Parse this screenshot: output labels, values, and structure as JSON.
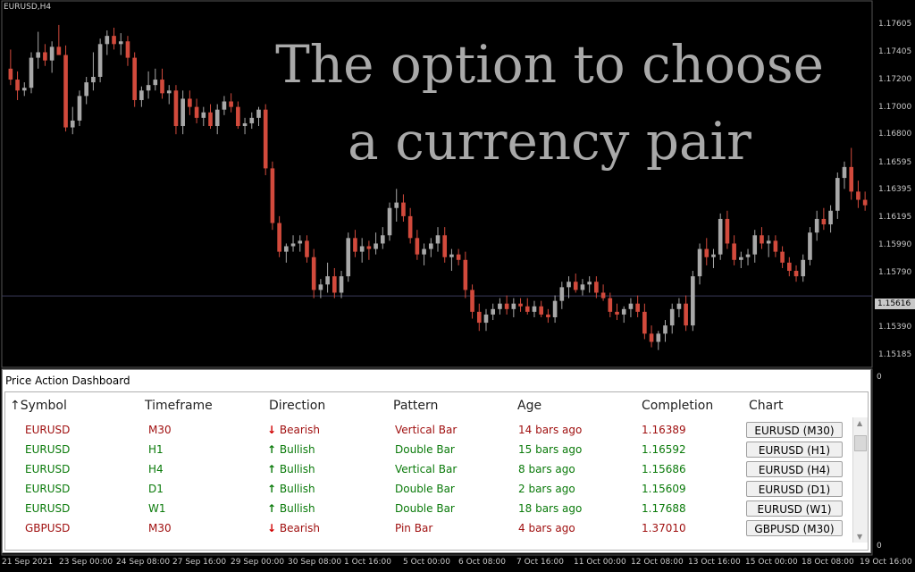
{
  "chart": {
    "symbol_label": "EURUSD,H4",
    "overlay_line1": "The option to choose",
    "overlay_line2": "a currency pair",
    "current_price": "1.15616",
    "price_labels": [
      "1.17605",
      "1.17405",
      "1.17200",
      "1.17000",
      "1.16800",
      "1.16595",
      "1.16395",
      "1.16195",
      "1.15990",
      "1.15790",
      "1.15390",
      "1.15185"
    ],
    "sub_window_labels": [
      "0",
      "0"
    ],
    "time_labels": [
      "21 Sep 2021",
      "23 Sep 00:00",
      "24 Sep 08:00",
      "27 Sep 16:00",
      "29 Sep 00:00",
      "30 Sep 08:00",
      "1 Oct 16:00",
      "5 Oct 00:00",
      "6 Oct 08:00",
      "7 Oct 16:00",
      "11 Oct 00:00",
      "12 Oct 08:00",
      "13 Oct 16:00",
      "15 Oct 00:00",
      "18 Oct 08:00",
      "19 Oct 16:00"
    ],
    "colors": {
      "bull": "#a8a8a8",
      "bear": "#d24a3c",
      "grid": "#2a2a2a",
      "background": "#000000"
    }
  },
  "chart_data": {
    "type": "candlestick",
    "ylim": [
      1.151,
      1.1775
    ],
    "candles": [
      [
        1.1728,
        1.1742,
        1.1716,
        1.172
      ],
      [
        1.172,
        1.1726,
        1.1705,
        1.1712
      ],
      [
        1.1712,
        1.1718,
        1.1708,
        1.1714
      ],
      [
        1.1714,
        1.174,
        1.171,
        1.1736
      ],
      [
        1.1736,
        1.1755,
        1.1728,
        1.174
      ],
      [
        1.174,
        1.1746,
        1.173,
        1.1734
      ],
      [
        1.1734,
        1.1748,
        1.1725,
        1.1744
      ],
      [
        1.1744,
        1.176,
        1.174,
        1.1738
      ],
      [
        1.1738,
        1.1745,
        1.1682,
        1.1685
      ],
      [
        1.1685,
        1.17,
        1.168,
        1.169
      ],
      [
        1.169,
        1.1712,
        1.1686,
        1.1708
      ],
      [
        1.1708,
        1.1722,
        1.1702,
        1.1718
      ],
      [
        1.1718,
        1.174,
        1.1712,
        1.1722
      ],
      [
        1.1722,
        1.175,
        1.1718,
        1.1746
      ],
      [
        1.1746,
        1.1756,
        1.1738,
        1.1752
      ],
      [
        1.1752,
        1.1758,
        1.1742,
        1.1746
      ],
      [
        1.1746,
        1.1754,
        1.1738,
        1.1748
      ],
      [
        1.1748,
        1.1752,
        1.173,
        1.1736
      ],
      [
        1.1736,
        1.174,
        1.17,
        1.1705
      ],
      [
        1.1705,
        1.1715,
        1.17,
        1.1712
      ],
      [
        1.1712,
        1.1726,
        1.1706,
        1.1716
      ],
      [
        1.1716,
        1.1728,
        1.1712,
        1.172
      ],
      [
        1.172,
        1.1728,
        1.1706,
        1.171
      ],
      [
        1.171,
        1.1716,
        1.1702,
        1.1712
      ],
      [
        1.1712,
        1.1716,
        1.168,
        1.1686
      ],
      [
        1.1686,
        1.1712,
        1.168,
        1.1706
      ],
      [
        1.1706,
        1.1712,
        1.1694,
        1.17
      ],
      [
        1.17,
        1.1706,
        1.1688,
        1.1692
      ],
      [
        1.1692,
        1.17,
        1.1686,
        1.1696
      ],
      [
        1.1696,
        1.1702,
        1.1684,
        1.1686
      ],
      [
        1.1686,
        1.1702,
        1.168,
        1.1698
      ],
      [
        1.1698,
        1.1708,
        1.1694,
        1.1704
      ],
      [
        1.1704,
        1.171,
        1.1696,
        1.17
      ],
      [
        1.17,
        1.1704,
        1.1684,
        1.1686
      ],
      [
        1.1686,
        1.1692,
        1.168,
        1.1688
      ],
      [
        1.1688,
        1.1696,
        1.1684,
        1.1692
      ],
      [
        1.1692,
        1.17,
        1.1686,
        1.1698
      ],
      [
        1.1698,
        1.1702,
        1.165,
        1.1655
      ],
      [
        1.1655,
        1.166,
        1.161,
        1.1615
      ],
      [
        1.1615,
        1.162,
        1.159,
        1.1594
      ],
      [
        1.1594,
        1.16,
        1.1586,
        1.1598
      ],
      [
        1.1598,
        1.1606,
        1.1594,
        1.16
      ],
      [
        1.16,
        1.1606,
        1.1594,
        1.1602
      ],
      [
        1.1602,
        1.1606,
        1.1586,
        1.159
      ],
      [
        1.159,
        1.1596,
        1.156,
        1.1566
      ],
      [
        1.1566,
        1.1574,
        1.156,
        1.157
      ],
      [
        1.157,
        1.1586,
        1.1564,
        1.1576
      ],
      [
        1.1576,
        1.1582,
        1.156,
        1.1564
      ],
      [
        1.1564,
        1.158,
        1.156,
        1.1576
      ],
      [
        1.1576,
        1.1608,
        1.1572,
        1.1604
      ],
      [
        1.1604,
        1.161,
        1.159,
        1.1594
      ],
      [
        1.1594,
        1.1604,
        1.1586,
        1.1598
      ],
      [
        1.1598,
        1.1602,
        1.1588,
        1.1596
      ],
      [
        1.1596,
        1.1608,
        1.1592,
        1.16
      ],
      [
        1.16,
        1.1612,
        1.1596,
        1.1606
      ],
      [
        1.1606,
        1.163,
        1.1602,
        1.1626
      ],
      [
        1.1626,
        1.164,
        1.1616,
        1.163
      ],
      [
        1.163,
        1.1636,
        1.1616,
        1.162
      ],
      [
        1.162,
        1.1626,
        1.16,
        1.1604
      ],
      [
        1.1604,
        1.161,
        1.1588,
        1.1592
      ],
      [
        1.1592,
        1.16,
        1.1584,
        1.1596
      ],
      [
        1.1596,
        1.1604,
        1.159,
        1.16
      ],
      [
        1.16,
        1.1612,
        1.1594,
        1.1606
      ],
      [
        1.1606,
        1.1612,
        1.1586,
        1.159
      ],
      [
        1.159,
        1.1596,
        1.158,
        1.1592
      ],
      [
        1.1592,
        1.1596,
        1.1584,
        1.1588
      ],
      [
        1.1588,
        1.1594,
        1.156,
        1.1566
      ],
      [
        1.1566,
        1.157,
        1.1545,
        1.155
      ],
      [
        1.155,
        1.1556,
        1.1536,
        1.1542
      ],
      [
        1.1542,
        1.1552,
        1.1536,
        1.1548
      ],
      [
        1.1548,
        1.1556,
        1.1544,
        1.1552
      ],
      [
        1.1552,
        1.156,
        1.1548,
        1.1556
      ],
      [
        1.1556,
        1.1562,
        1.1548,
        1.1552
      ],
      [
        1.1552,
        1.156,
        1.1546,
        1.1556
      ],
      [
        1.1556,
        1.156,
        1.155,
        1.1554
      ],
      [
        1.1554,
        1.156,
        1.1548,
        1.155
      ],
      [
        1.155,
        1.1558,
        1.1546,
        1.1554
      ],
      [
        1.1554,
        1.1558,
        1.1546,
        1.1548
      ],
      [
        1.1548,
        1.1552,
        1.1542,
        1.1546
      ],
      [
        1.1546,
        1.1562,
        1.1542,
        1.1558
      ],
      [
        1.1558,
        1.1572,
        1.1552,
        1.1568
      ],
      [
        1.1568,
        1.1576,
        1.156,
        1.1572
      ],
      [
        1.1572,
        1.1578,
        1.1564,
        1.1566
      ],
      [
        1.1566,
        1.1574,
        1.1562,
        1.157
      ],
      [
        1.157,
        1.1576,
        1.1564,
        1.1572
      ],
      [
        1.1572,
        1.1576,
        1.156,
        1.1564
      ],
      [
        1.1564,
        1.157,
        1.1558,
        1.156
      ],
      [
        1.156,
        1.1564,
        1.1546,
        1.155
      ],
      [
        1.155,
        1.1556,
        1.1544,
        1.1548
      ],
      [
        1.1548,
        1.1554,
        1.1542,
        1.1552
      ],
      [
        1.1552,
        1.156,
        1.1546,
        1.1556
      ],
      [
        1.1556,
        1.1562,
        1.1546,
        1.155
      ],
      [
        1.155,
        1.1556,
        1.153,
        1.1534
      ],
      [
        1.1534,
        1.154,
        1.1524,
        1.1528
      ],
      [
        1.1528,
        1.1536,
        1.1522,
        1.1534
      ],
      [
        1.1534,
        1.1544,
        1.1528,
        1.154
      ],
      [
        1.154,
        1.1556,
        1.1534,
        1.1552
      ],
      [
        1.1552,
        1.156,
        1.1546,
        1.1556
      ],
      [
        1.1556,
        1.1562,
        1.1536,
        1.154
      ],
      [
        1.154,
        1.158,
        1.1536,
        1.1576
      ],
      [
        1.1576,
        1.16,
        1.157,
        1.1596
      ],
      [
        1.1596,
        1.1604,
        1.1584,
        1.159
      ],
      [
        1.159,
        1.1596,
        1.1582,
        1.1592
      ],
      [
        1.1592,
        1.1622,
        1.1588,
        1.1618
      ],
      [
        1.1618,
        1.1624,
        1.1596,
        1.16
      ],
      [
        1.16,
        1.1606,
        1.1584,
        1.1588
      ],
      [
        1.1588,
        1.1594,
        1.1582,
        1.159
      ],
      [
        1.159,
        1.1596,
        1.1584,
        1.1592
      ],
      [
        1.1592,
        1.161,
        1.1586,
        1.1606
      ],
      [
        1.1606,
        1.1612,
        1.1596,
        1.16
      ],
      [
        1.16,
        1.1606,
        1.159,
        1.1602
      ],
      [
        1.1602,
        1.1606,
        1.159,
        1.1594
      ],
      [
        1.1594,
        1.1598,
        1.1582,
        1.1586
      ],
      [
        1.1586,
        1.159,
        1.1576,
        1.158
      ],
      [
        1.158,
        1.1584,
        1.1572,
        1.1576
      ],
      [
        1.1576,
        1.1592,
        1.1572,
        1.1588
      ],
      [
        1.1588,
        1.1612,
        1.1584,
        1.1608
      ],
      [
        1.1608,
        1.1624,
        1.1602,
        1.1618
      ],
      [
        1.1618,
        1.1626,
        1.161,
        1.1614
      ],
      [
        1.1614,
        1.1628,
        1.1608,
        1.1624
      ],
      [
        1.1624,
        1.1652,
        1.1618,
        1.1648
      ],
      [
        1.1648,
        1.166,
        1.164,
        1.1656
      ],
      [
        1.1656,
        1.167,
        1.1632,
        1.1638
      ],
      [
        1.1638,
        1.1646,
        1.1626,
        1.1632
      ],
      [
        1.1632,
        1.1638,
        1.1624,
        1.1628
      ]
    ]
  },
  "dashboard": {
    "title": "Price Action Dashboard",
    "headers": [
      "Symbol",
      "Timeframe",
      "Direction",
      "Pattern",
      "Age",
      "Completion",
      "Chart"
    ],
    "sort_indicator": "↑",
    "rows": [
      {
        "symbol": "EURUSD",
        "timeframe": "M30",
        "direction": "Bearish",
        "dir_arrow": "🡫",
        "pattern": "Vertical Bar",
        "age": "14 bars ago",
        "completion": "1.16389",
        "chart_btn": "EURUSD (M30)",
        "bull": false
      },
      {
        "symbol": "EURUSD",
        "timeframe": "H1",
        "direction": "Bullish",
        "dir_arrow": "🡩",
        "pattern": "Double Bar",
        "age": "15 bars ago",
        "completion": "1.16592",
        "chart_btn": "EURUSD (H1)",
        "bull": true
      },
      {
        "symbol": "EURUSD",
        "timeframe": "H4",
        "direction": "Bullish",
        "dir_arrow": "🡩",
        "pattern": "Vertical Bar",
        "age": "8 bars ago",
        "completion": "1.15686",
        "chart_btn": "EURUSD (H4)",
        "bull": true
      },
      {
        "symbol": "EURUSD",
        "timeframe": "D1",
        "direction": "Bullish",
        "dir_arrow": "🡩",
        "pattern": "Double Bar",
        "age": "2 bars ago",
        "completion": "1.15609",
        "chart_btn": "EURUSD (D1)",
        "bull": true
      },
      {
        "symbol": "EURUSD",
        "timeframe": "W1",
        "direction": "Bullish",
        "dir_arrow": "🡩",
        "pattern": "Double Bar",
        "age": "18 bars ago",
        "completion": "1.17688",
        "chart_btn": "EURUSD (W1)",
        "bull": true
      },
      {
        "symbol": "GBPUSD",
        "timeframe": "M30",
        "direction": "Bearish",
        "dir_arrow": "🡫",
        "pattern": "Pin Bar",
        "age": "4 bars ago",
        "completion": "1.37010",
        "chart_btn": "GBPUSD (M30)",
        "bull": false
      }
    ]
  }
}
